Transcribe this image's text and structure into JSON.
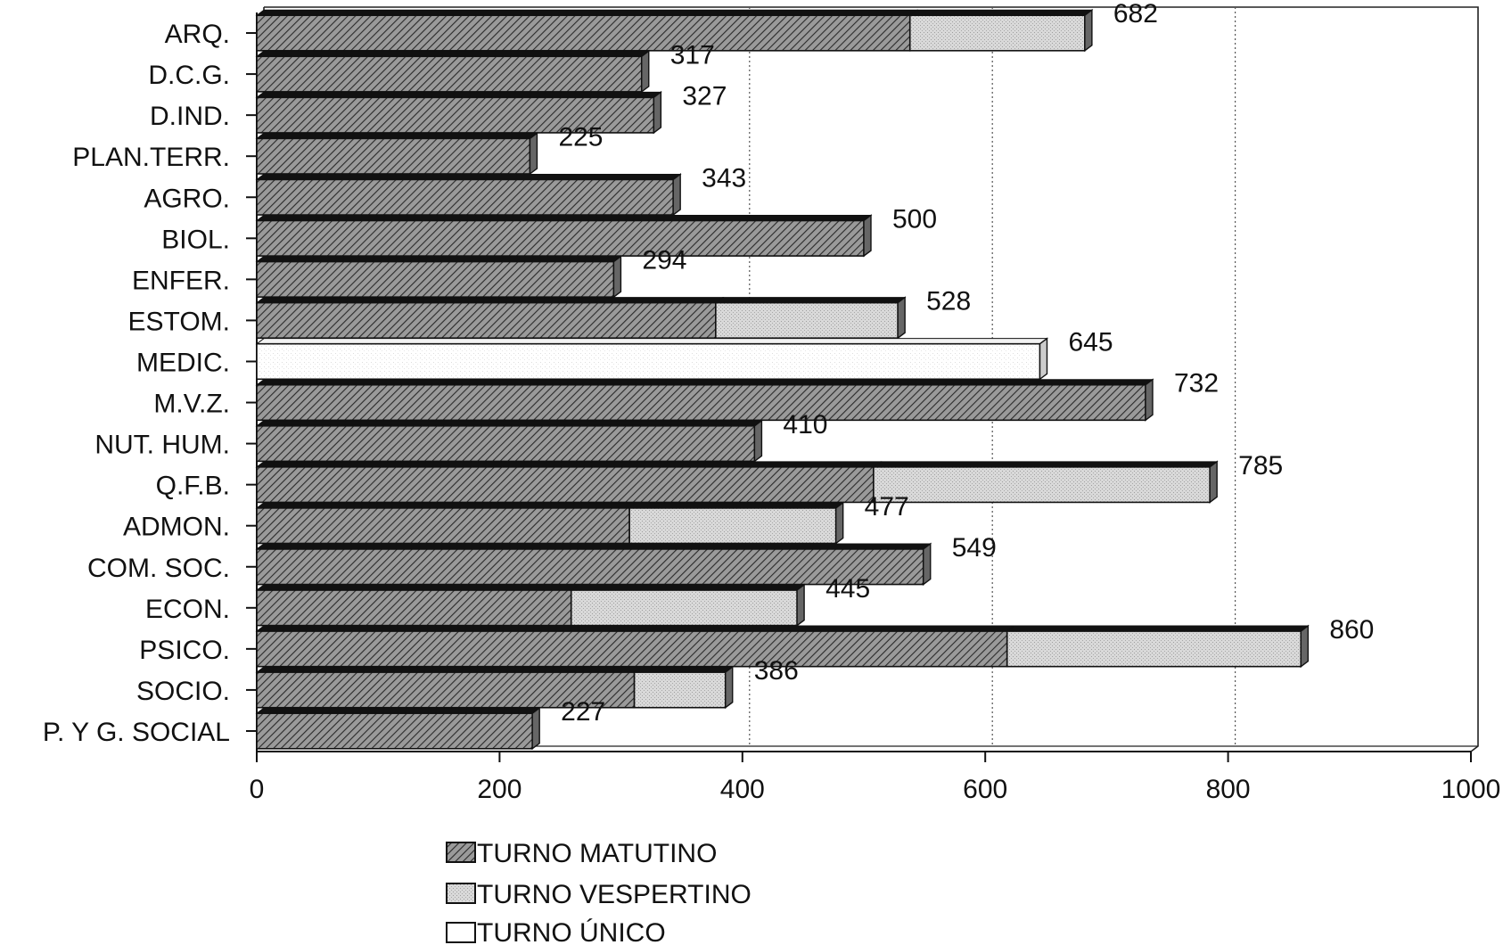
{
  "chart_data": {
    "type": "bar",
    "orientation": "horizontal",
    "stacked": true,
    "categories": [
      "ARQ.",
      "D.C.G.",
      "D.IND.",
      "PLAN.TERR.",
      "AGRO.",
      "BIOL.",
      "ENFER.",
      "ESTOM.",
      "MEDIC.",
      "M.V.Z.",
      "NUT. HUM.",
      "Q.F.B.",
      "ADMON.",
      "COM. SOC.",
      "ECON.",
      "PSICO.",
      "SOCIO.",
      "P. Y G. SOCIAL"
    ],
    "series": [
      {
        "name": "TURNO MATUTINO",
        "color": "#8a8a8a",
        "pattern": "diagonal-hatch",
        "values": [
          538,
          317,
          327,
          225,
          343,
          500,
          294,
          378,
          0,
          732,
          410,
          508,
          307,
          549,
          259,
          618,
          311,
          227
        ]
      },
      {
        "name": "TURNO VESPERTINO",
        "color": "#d4d4d4",
        "pattern": "stipple",
        "values": [
          144,
          0,
          0,
          0,
          0,
          0,
          0,
          150,
          0,
          0,
          0,
          277,
          170,
          0,
          186,
          242,
          75,
          0
        ]
      },
      {
        "name": "TURNO ÚNICO",
        "color": "#ffffff",
        "pattern": "none",
        "values": [
          0,
          0,
          0,
          0,
          0,
          0,
          0,
          0,
          645,
          0,
          0,
          0,
          0,
          0,
          0,
          0,
          0,
          0
        ]
      }
    ],
    "totals": [
      "682",
      "317",
      "327",
      "225",
      "343",
      "500",
      "294",
      "528",
      "645",
      "732",
      "410",
      "785",
      "477",
      "549",
      "445",
      "860",
      "386",
      "227"
    ],
    "x_ticks": [
      "0",
      "200",
      "400",
      "600",
      "800",
      "1000"
    ],
    "xlim": [
      0,
      1000
    ],
    "gridlines": [
      400,
      600,
      800
    ],
    "grid": "vertical dotted",
    "legend_position": "bottom"
  }
}
